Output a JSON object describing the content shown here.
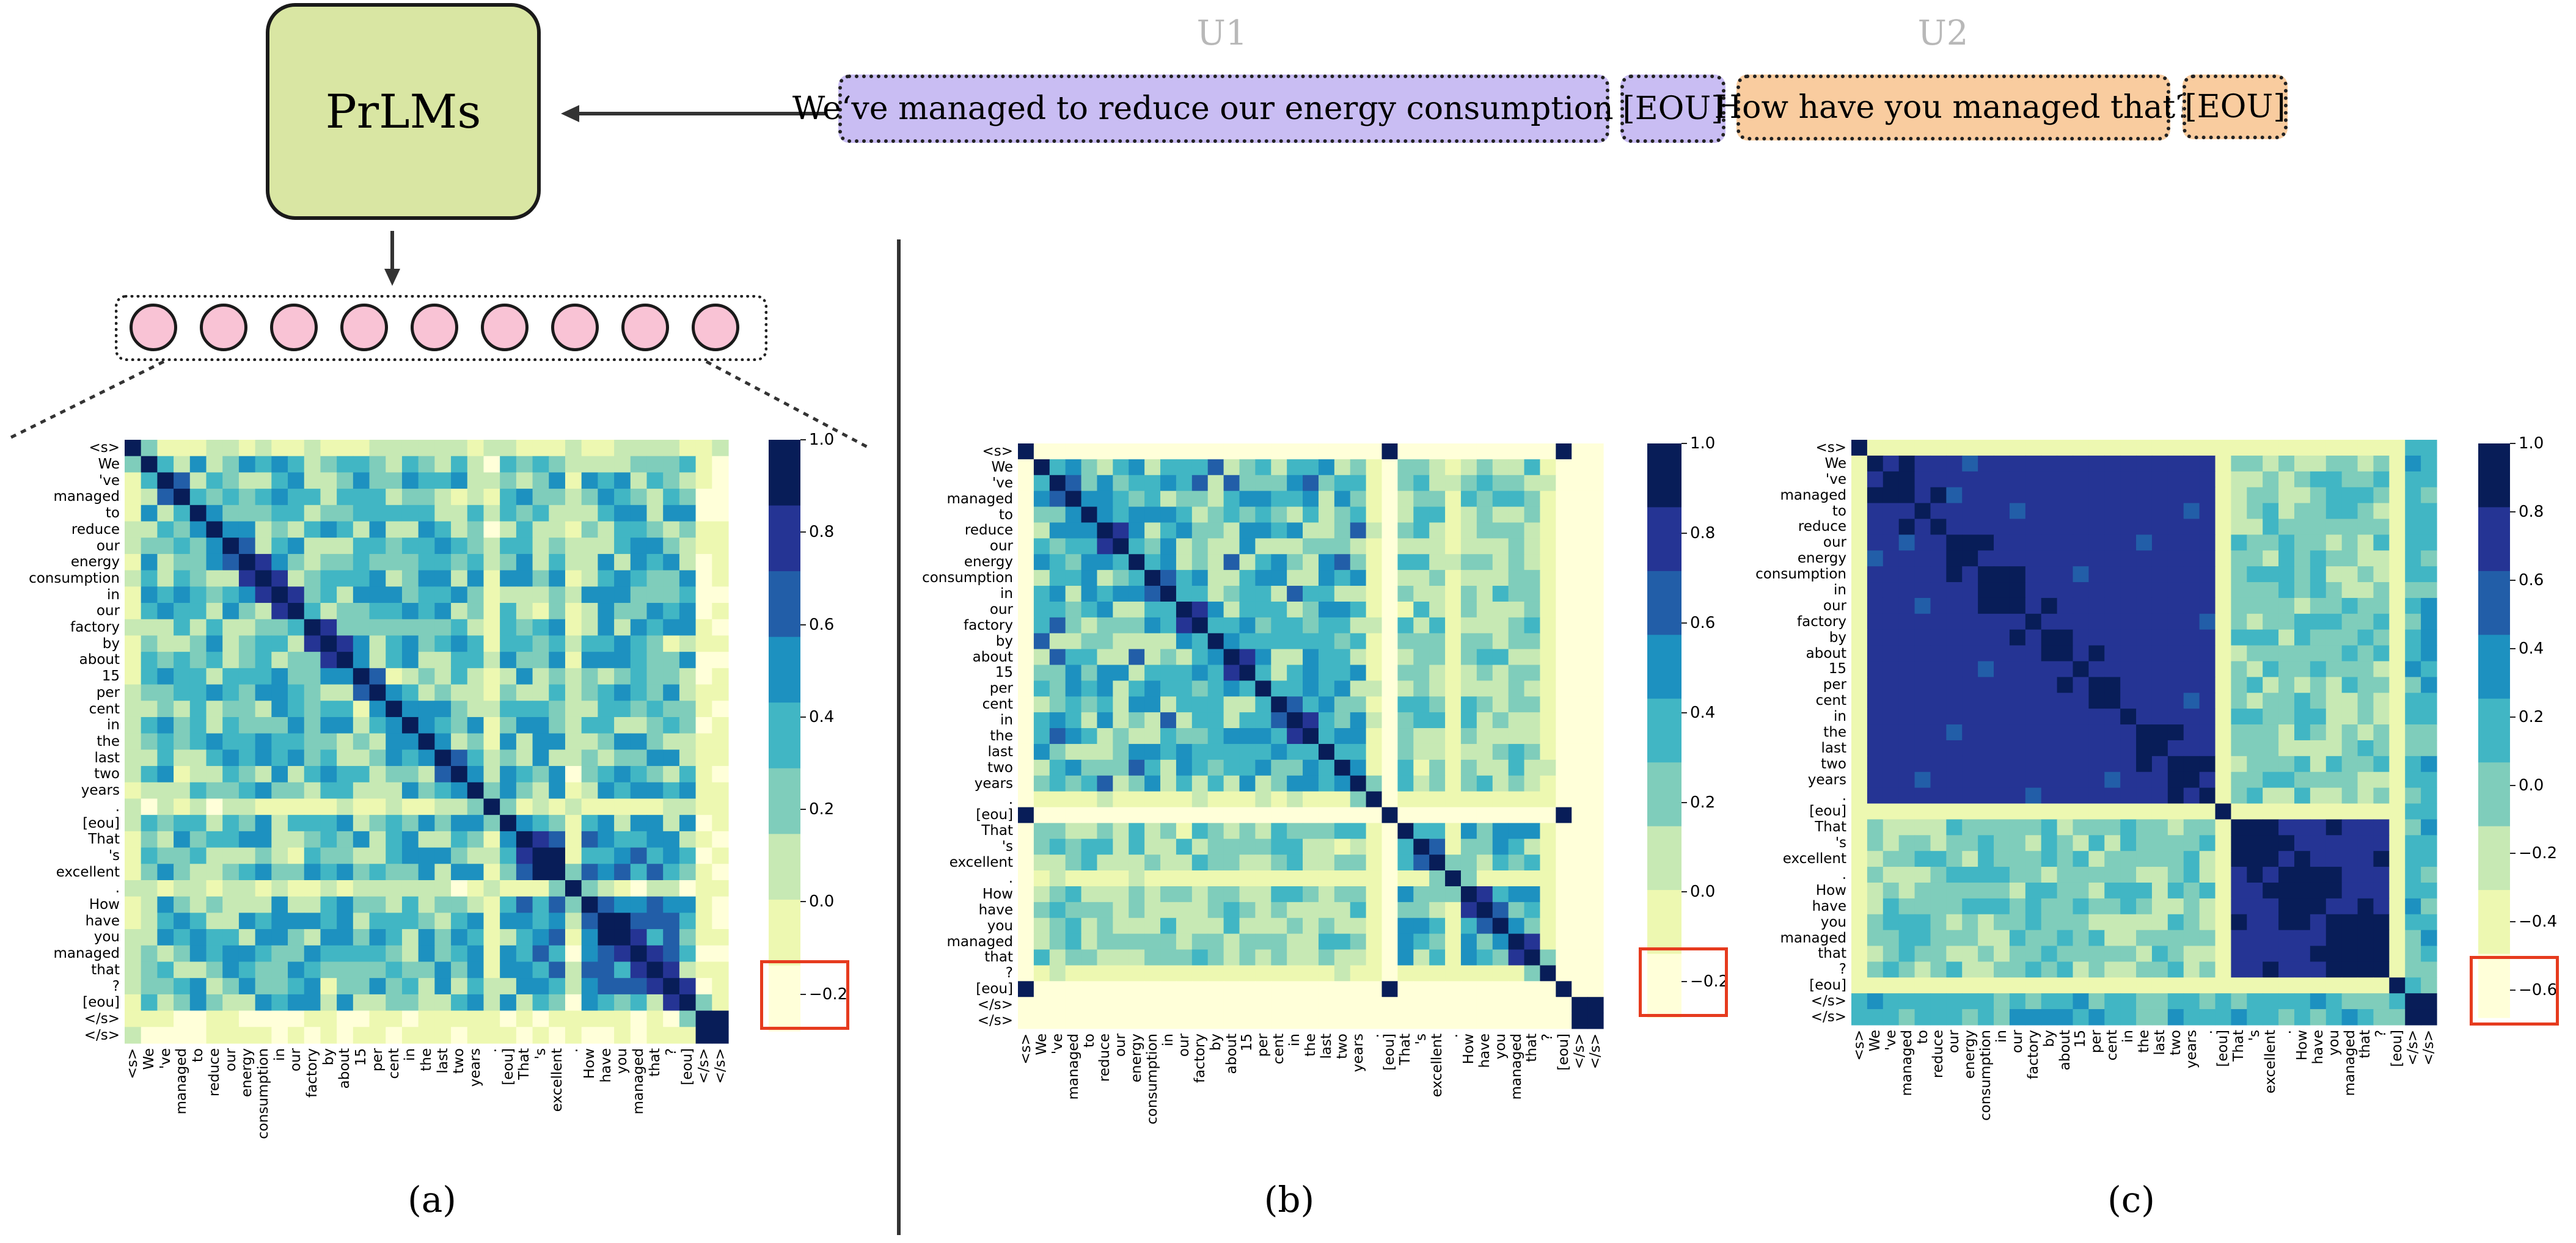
{
  "model": {
    "label": "PrLMs"
  },
  "utterances": {
    "u1": {
      "label": "U1",
      "text": "We‘ve managed to reduce our energy consumption …",
      "eou": "[EOU]"
    },
    "u2": {
      "label": "U2",
      "text": "How have you managed that?",
      "eou": "[EOU]"
    }
  },
  "colors": {
    "prlm_fill": "#d9e6a3",
    "u1_fill": "#c9bdf3",
    "u2_fill": "#f9cc9f",
    "embedding_fill": "#f9c3d5",
    "highlight": "#e63b1e",
    "colormap": [
      "#ffffd9",
      "#edf8b1",
      "#c7e9b4",
      "#7fcdbb",
      "#41b6c4",
      "#1d91c0",
      "#225ea8",
      "#253494",
      "#081d58"
    ]
  },
  "embedding_count": 9,
  "tokens": [
    "<s>",
    "We",
    "'ve",
    "managed",
    "to",
    "reduce",
    "our",
    "energy",
    "consumption",
    "in",
    "our",
    "factory",
    "by",
    "about",
    "15",
    "per",
    "cent",
    "in",
    "the",
    "last",
    "two",
    "years",
    ".",
    "[eou]",
    "That",
    "'s",
    "excellent",
    ".",
    "How",
    "have",
    "you",
    "managed",
    "that",
    "?",
    "[eou]",
    "</s>",
    "</s>"
  ],
  "chart_data": [
    {
      "type": "heatmap",
      "panel": "(a)",
      "caption": "(a)",
      "colorbar_ticks": [
        "1.0",
        "0.8",
        "0.6",
        "0.4",
        "0.2",
        "0.0",
        "−0.2"
      ],
      "highlighted_tick": "−0.2",
      "vmin": -0.28,
      "vmax": 1.0,
      "pattern": "mixed"
    },
    {
      "type": "heatmap",
      "panel": "(b)",
      "caption": "(b)",
      "colorbar_ticks": [
        "1.0",
        "0.8",
        "0.6",
        "0.4",
        "0.2",
        "0.0",
        "−0.2"
      ],
      "highlighted_tick": "−0.2",
      "vmin": -0.28,
      "vmax": 1.0,
      "pattern": "separator"
    },
    {
      "type": "heatmap",
      "panel": "(c)",
      "caption": "(c)",
      "colorbar_ticks": [
        "1.0",
        "0.8",
        "0.6",
        "0.4",
        "0.2",
        "0.0",
        "−0.2",
        "−0.4",
        "−0.6"
      ],
      "highlighted_tick": "−0.6",
      "vmin": -0.68,
      "vmax": 1.0,
      "pattern": "block"
    }
  ]
}
